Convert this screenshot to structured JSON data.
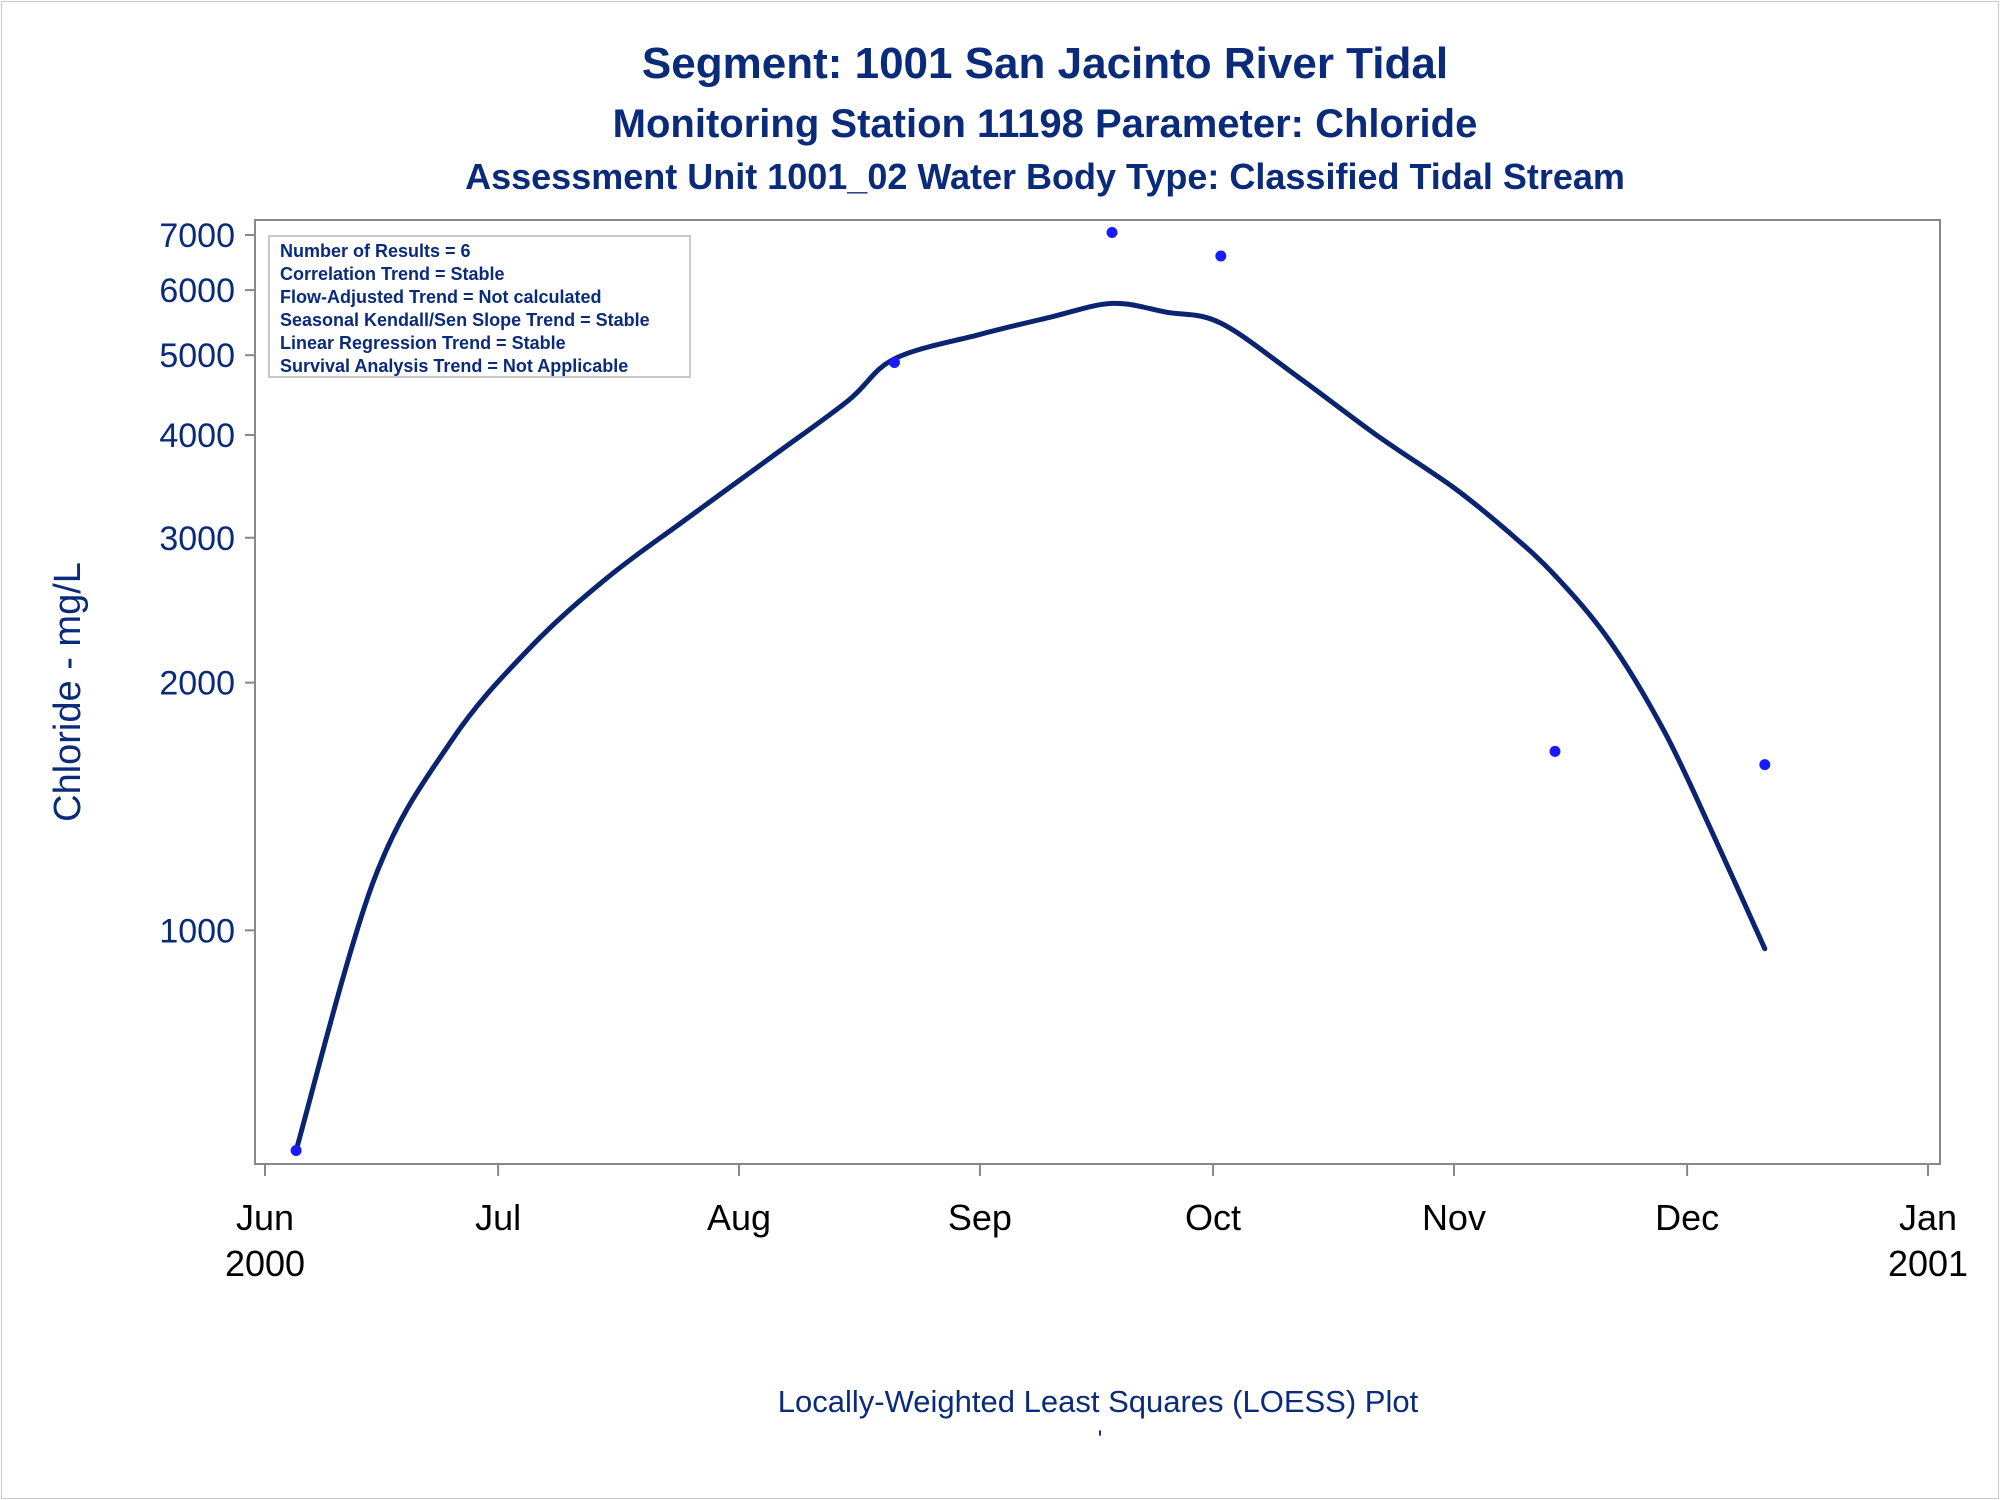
{
  "titles": {
    "line1": "Segment: 1001  San Jacinto River Tidal",
    "line2": "Monitoring Station 11198 Parameter: Chloride",
    "line3": "Assessment Unit 1001_02   Water Body Type: Classified Tidal Stream"
  },
  "stats_box": [
    "Number of Results = 6",
    "Correlation Trend = Stable",
    "Flow-Adjusted Trend = Not calculated",
    "Seasonal Kendall/Sen Slope Trend = Stable",
    "Linear Regression Trend = Stable",
    "Survival Analysis Trend = Not Applicable"
  ],
  "footnote": "Locally-Weighted Least Squares (LOESS) Plot",
  "footnote_mark": "'",
  "colors": {
    "text": "#0a2a7a",
    "curve": "#0b2470",
    "points": "#1a1aff",
    "axis": "#888888",
    "x_tick_text": "#000000"
  },
  "chart_data": {
    "type": "scatter",
    "ylabel": "Chloride - mg/L",
    "yscale": "log",
    "ylim": [
      520,
      7300
    ],
    "xlim": [
      "2000-06-01",
      "2001-01-01"
    ],
    "y_ticks": [
      1000,
      2000,
      3000,
      4000,
      5000,
      6000,
      7000
    ],
    "y_tick_labels": [
      "1000",
      "2000",
      "3000",
      "4000",
      "5000",
      "6000",
      "7000"
    ],
    "x_ticks": [
      {
        "date": "2000-06-01",
        "label": "Jun",
        "year": "2000"
      },
      {
        "date": "2000-07-01",
        "label": "Jul",
        "year": ""
      },
      {
        "date": "2000-08-01",
        "label": "Aug",
        "year": ""
      },
      {
        "date": "2000-09-01",
        "label": "Sep",
        "year": ""
      },
      {
        "date": "2000-10-01",
        "label": "Oct",
        "year": ""
      },
      {
        "date": "2000-11-01",
        "label": "Nov",
        "year": ""
      },
      {
        "date": "2000-12-01",
        "label": "Dec",
        "year": ""
      },
      {
        "date": "2001-01-01",
        "label": "Jan",
        "year": "2001"
      }
    ],
    "points": [
      {
        "date": "2000-06-05",
        "value": 540
      },
      {
        "date": "2000-08-21",
        "value": 4900
      },
      {
        "date": "2000-09-18",
        "value": 7050
      },
      {
        "date": "2000-10-02",
        "value": 6600
      },
      {
        "date": "2000-11-14",
        "value": 1650
      },
      {
        "date": "2000-12-11",
        "value": 1590
      }
    ],
    "loess_curve": [
      {
        "date": "2000-06-05",
        "value": 540
      },
      {
        "date": "2000-06-15",
        "value": 1150
      },
      {
        "date": "2000-06-25",
        "value": 1700
      },
      {
        "date": "2000-07-05",
        "value": 2200
      },
      {
        "date": "2000-07-15",
        "value": 2680
      },
      {
        "date": "2000-07-25",
        "value": 3150
      },
      {
        "date": "2000-08-05",
        "value": 3750
      },
      {
        "date": "2000-08-15",
        "value": 4400
      },
      {
        "date": "2000-08-21",
        "value": 4950
      },
      {
        "date": "2000-09-01",
        "value": 5300
      },
      {
        "date": "2000-09-10",
        "value": 5560
      },
      {
        "date": "2000-09-18",
        "value": 5780
      },
      {
        "date": "2000-09-25",
        "value": 5640
      },
      {
        "date": "2000-10-02",
        "value": 5470
      },
      {
        "date": "2000-10-12",
        "value": 4700
      },
      {
        "date": "2000-10-22",
        "value": 4000
      },
      {
        "date": "2000-11-01",
        "value": 3450
      },
      {
        "date": "2000-11-08",
        "value": 3050
      },
      {
        "date": "2000-11-14",
        "value": 2700
      },
      {
        "date": "2000-11-21",
        "value": 2250
      },
      {
        "date": "2000-11-28",
        "value": 1750
      },
      {
        "date": "2000-12-04",
        "value": 1330
      },
      {
        "date": "2000-12-11",
        "value": 950
      }
    ]
  }
}
